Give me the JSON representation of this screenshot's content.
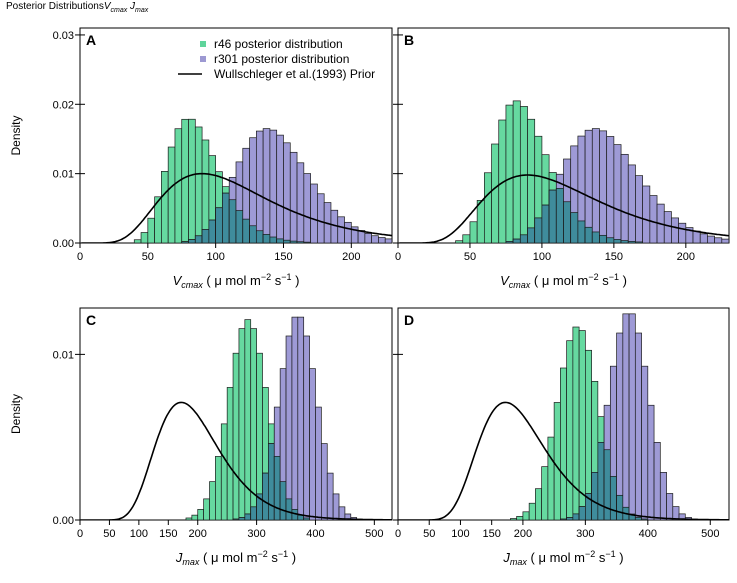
{
  "header": {
    "prefix": "Posterior Distributions",
    "var1_base": "V",
    "var1_sub": "cmax",
    "var2_base": "J",
    "var2_sub": "max"
  },
  "legend": {
    "entries": [
      {
        "label": "r46 posterior distribution",
        "color": "#5fd49b"
      },
      {
        "label": "r301 posterior distribution",
        "color": "#9d99d2"
      },
      {
        "label": "Wullschleger et al.(1993) Prior",
        "color": "#000000"
      }
    ]
  },
  "colors": {
    "r46_fill": "#66d9a0",
    "r301_fill": "#9e9ad6",
    "overlap_fill": "#3f8c9c",
    "bar_stroke": "#1a1a1a",
    "prior_line": "#000000"
  },
  "chart_data": [
    {
      "panel": "A",
      "type": "bar",
      "variable": "Vcmax",
      "xlabel_base": "V",
      "xlabel_sub": "cmax",
      "xlabel_unit": "μ mol m",
      "ylabel": "Density",
      "xlim": [
        0,
        230
      ],
      "ylim": [
        0,
        0.031
      ],
      "xticks": [
        0,
        50,
        100,
        150,
        200
      ],
      "yticks": [
        0.0,
        0.01,
        0.02,
        0.03
      ],
      "ytick_labels": [
        "0.00",
        "0.01",
        "0.02",
        "0.03"
      ],
      "bin_width": 5,
      "series": [
        {
          "name": "r46 posterior distribution",
          "distribution": "lognormal",
          "mode": 80,
          "sd": 19,
          "peak": 0.018
        },
        {
          "name": "r301 posterior distribution",
          "distribution": "lognormal",
          "mode": 138,
          "sd": 27,
          "peak": 0.0165
        }
      ],
      "prior": {
        "name": "Wullschleger et al.(1993) Prior",
        "distribution": "lognormal",
        "mode": 90,
        "sd": 42,
        "peak": 0.01
      }
    },
    {
      "panel": "B",
      "type": "bar",
      "variable": "Vcmax",
      "xlabel_base": "V",
      "xlabel_sub": "cmax",
      "xlabel_unit": "μ mol m",
      "ylabel": "",
      "xlim": [
        0,
        230
      ],
      "ylim": [
        0,
        0.031
      ],
      "xticks": [
        0,
        50,
        100,
        150,
        200
      ],
      "yticks": [
        0.0,
        0.01,
        0.02,
        0.03
      ],
      "ytick_labels": [],
      "bin_width": 5,
      "series": [
        {
          "name": "r46 posterior distribution",
          "distribution": "lognormal",
          "mode": 82,
          "sd": 19,
          "peak": 0.0205
        },
        {
          "name": "r301 posterior distribution",
          "distribution": "lognormal",
          "mode": 137,
          "sd": 27,
          "peak": 0.0165
        }
      ],
      "prior": {
        "name": "Wullschleger et al.(1993) Prior",
        "distribution": "lognormal",
        "mode": 90,
        "sd": 42,
        "peak": 0.0098
      }
    },
    {
      "panel": "C",
      "type": "bar",
      "variable": "Jmax",
      "xlabel_base": "J",
      "xlabel_sub": "max",
      "xlabel_unit": "μ mol m",
      "ylabel": "Density",
      "xlim": [
        0,
        530
      ],
      "ylim": [
        0,
        0.0128
      ],
      "xticks": [
        0,
        50,
        100,
        150,
        200,
        300,
        400,
        500
      ],
      "yticks": [
        0.0,
        0.01
      ],
      "ytick_labels": [
        "0.00",
        "0.01"
      ],
      "bin_width": 10,
      "series": [
        {
          "name": "r46 posterior distribution",
          "distribution": "normal",
          "mean": 285,
          "sd": 33,
          "peak": 0.0121
        },
        {
          "name": "r301 posterior distribution",
          "distribution": "normal",
          "mean": 370,
          "sd": 32,
          "peak": 0.0124
        }
      ],
      "prior": {
        "name": "Wullschleger et al.(1993) Prior",
        "distribution": "lognormal",
        "mode": 172,
        "sd": 55,
        "peak": 0.0071
      }
    },
    {
      "panel": "D",
      "type": "bar",
      "variable": "Jmax",
      "xlabel_base": "J",
      "xlabel_sub": "max",
      "xlabel_unit": "μ mol m",
      "ylabel": "",
      "xlim": [
        0,
        530
      ],
      "ylim": [
        0,
        0.0128
      ],
      "xticks": [
        0,
        50,
        100,
        150,
        200,
        300,
        400,
        500
      ],
      "yticks": [
        0.0,
        0.01
      ],
      "ytick_labels": [],
      "bin_width": 10,
      "series": [
        {
          "name": "r46 posterior distribution",
          "distribution": "normal",
          "mean": 288,
          "sd": 33,
          "peak": 0.0117
        },
        {
          "name": "r301 posterior distribution",
          "distribution": "normal",
          "mean": 370,
          "sd": 32,
          "peak": 0.0126
        }
      ],
      "prior": {
        "name": "Wullschleger et al.(1993) Prior",
        "distribution": "lognormal",
        "mode": 172,
        "sd": 55,
        "peak": 0.0071
      }
    }
  ]
}
